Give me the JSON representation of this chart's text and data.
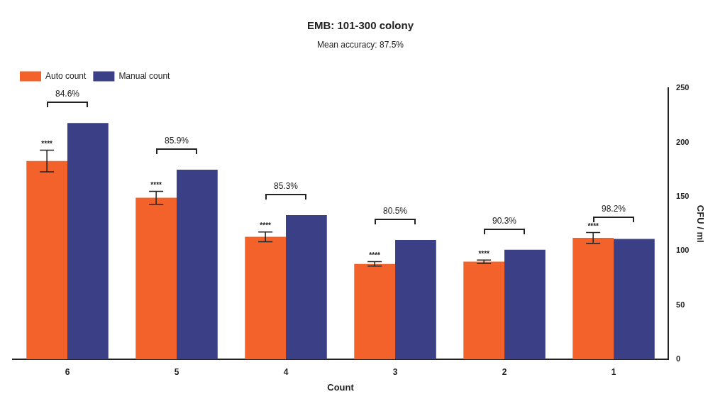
{
  "chart_data": {
    "type": "bar",
    "title": "EMB: 101-300 colony",
    "xlabel": "Count",
    "y2label": "CFU / ml",
    "categories": [
      "6",
      "5",
      "4",
      "3",
      "2",
      "1"
    ],
    "series": [
      {
        "name": "Auto count",
        "color": "#f2622a",
        "values": [
          183,
          149,
          113,
          88,
          90,
          112
        ],
        "errors": [
          10,
          6,
          4.5,
          2,
          1.5,
          5
        ],
        "value_labels": [
          "****",
          "****",
          "****",
          "****",
          "****",
          "****"
        ],
        "axis": "y2"
      },
      {
        "name": "Manual count",
        "color": "#3b3f86",
        "values": [
          218,
          175,
          133,
          110,
          101,
          111
        ],
        "axis": "y2"
      }
    ],
    "y2lim": [
      0,
      250
    ],
    "y2ticks": [
      0,
      50,
      100,
      150,
      200,
      250
    ],
    "grid": false,
    "legend": "top left",
    "annotations": [
      "Mean accuracy: 87.5%",
      "84.6%",
      "85.9%",
      "85.3%",
      "80.5%",
      "90.3%",
      "98.2%"
    ]
  }
}
